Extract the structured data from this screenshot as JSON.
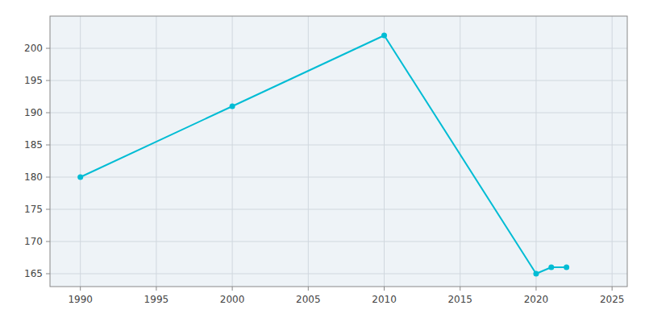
{
  "chart_data": {
    "type": "line",
    "x": [
      1990,
      2000,
      2010,
      2020,
      2021,
      2022
    ],
    "values": [
      180,
      191,
      202,
      165,
      166,
      166
    ],
    "color": "#00bcd4",
    "marker": "circle",
    "xlim": [
      1988,
      2026
    ],
    "ylim": [
      163,
      205
    ],
    "xticks": [
      1990,
      1995,
      2000,
      2005,
      2010,
      2015,
      2020,
      2025
    ],
    "yticks": [
      165,
      170,
      175,
      180,
      185,
      190,
      195,
      200
    ],
    "grid": true
  }
}
